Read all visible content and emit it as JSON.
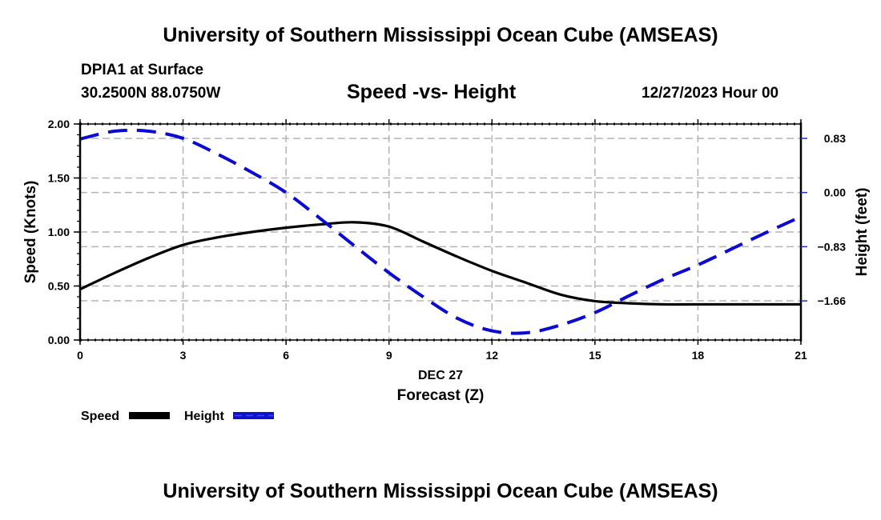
{
  "header": {
    "title": "University of Southern Mississippi Ocean Cube (AMSEAS)",
    "station": "DPIA1 at Surface",
    "coordinates": "30.2500N  88.0750W",
    "chart_title": "Speed -vs- Height",
    "datetime": "12/27/2023 Hour 00"
  },
  "footer": {
    "title": "University of Southern Mississippi Ocean Cube (AMSEAS)"
  },
  "chart_data": {
    "type": "line",
    "title": "Speed -vs- Height",
    "xlabel": "Forecast (Z)",
    "x_date_label": "DEC 27",
    "ylabel": "Speed (Knots)",
    "y2label": "Height (feet)",
    "xlim": [
      0,
      21
    ],
    "ylim": [
      0,
      2.0
    ],
    "y2lim": [
      -2.26,
      1.05
    ],
    "x_ticks": [
      0,
      3,
      6,
      9,
      12,
      15,
      18,
      21
    ],
    "x_tick_labels": [
      "0",
      "3",
      "6",
      "9",
      "12",
      "15",
      "18",
      "21"
    ],
    "y_ticks": [
      0.0,
      0.5,
      1.0,
      1.5,
      2.0
    ],
    "y_tick_labels": [
      "0.00",
      "0.50",
      "1.00",
      "1.50",
      "2.00"
    ],
    "y2_ticks": [
      0.83,
      0.0,
      -0.83,
      -1.66
    ],
    "y2_tick_labels": [
      "0.83",
      "0.00",
      "−0.83",
      "−1.66"
    ],
    "grid": true,
    "legend_position": "bottom-left",
    "series": [
      {
        "name": "Speed",
        "axis": "left",
        "style": "solid",
        "color": "#000000",
        "x": [
          0,
          1,
          2,
          3,
          4,
          5,
          6,
          7,
          8,
          9,
          10,
          11,
          12,
          13,
          14,
          15,
          16,
          17,
          18,
          19,
          20,
          21
        ],
        "values": [
          0.47,
          0.62,
          0.76,
          0.88,
          0.95,
          1.0,
          1.04,
          1.07,
          1.09,
          1.05,
          0.91,
          0.77,
          0.64,
          0.53,
          0.42,
          0.36,
          0.34,
          0.33,
          0.33,
          0.33,
          0.33,
          0.33
        ]
      },
      {
        "name": "Height",
        "axis": "right",
        "style": "dashed",
        "color": "#0000cc",
        "x": [
          0,
          1,
          2,
          3,
          4,
          5,
          6,
          7,
          8,
          9,
          10,
          11,
          12,
          13,
          14,
          15,
          16,
          17,
          18,
          19,
          20,
          21
        ],
        "values": [
          0.82,
          0.94,
          0.94,
          0.83,
          0.59,
          0.31,
          0.0,
          -0.4,
          -0.82,
          -1.23,
          -1.6,
          -1.93,
          -2.12,
          -2.15,
          -2.03,
          -1.84,
          -1.58,
          -1.33,
          -1.11,
          -0.86,
          -0.61,
          -0.37
        ]
      }
    ],
    "legend": [
      {
        "label": "Speed",
        "style": "solid",
        "color": "#000000"
      },
      {
        "label": "Height",
        "style": "dashed",
        "color": "#0000cc"
      }
    ]
  }
}
